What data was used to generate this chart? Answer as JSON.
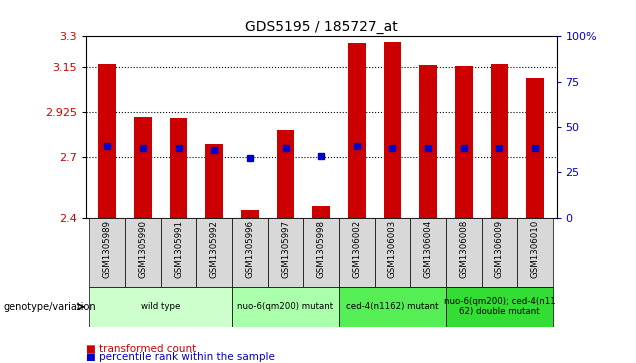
{
  "title": "GDS5195 / 185727_at",
  "samples": [
    "GSM1305989",
    "GSM1305990",
    "GSM1305991",
    "GSM1305992",
    "GSM1305996",
    "GSM1305997",
    "GSM1305998",
    "GSM1306002",
    "GSM1306003",
    "GSM1306004",
    "GSM1306008",
    "GSM1306009",
    "GSM1306010"
  ],
  "bar_heights": [
    3.162,
    2.9,
    2.895,
    2.765,
    2.44,
    2.835,
    2.46,
    3.265,
    3.27,
    3.16,
    3.155,
    3.165,
    3.095
  ],
  "percentile_values": [
    2.755,
    2.745,
    2.745,
    2.735,
    2.695,
    2.745,
    2.705,
    2.755,
    2.745,
    2.745,
    2.745,
    2.745,
    2.745
  ],
  "bar_color": "#cc0000",
  "percentile_color": "#0000cc",
  "ymin": 2.4,
  "ymax": 3.3,
  "yticks": [
    2.4,
    2.7,
    2.925,
    3.15,
    3.3
  ],
  "ytick_labels": [
    "2.4",
    "2.7",
    "2.925",
    "3.15",
    "3.3"
  ],
  "right_yticks": [
    0,
    25,
    50,
    75,
    100
  ],
  "right_ytick_labels": [
    "0",
    "25",
    "50",
    "75",
    "100%"
  ],
  "groups": [
    {
      "label": "wild type",
      "start": 0,
      "end": 3,
      "color": "#ccffcc"
    },
    {
      "label": "nuo-6(qm200) mutant",
      "start": 4,
      "end": 6,
      "color": "#aaffaa"
    },
    {
      "label": "ced-4(n1162) mutant",
      "start": 7,
      "end": 9,
      "color": "#55ee55"
    },
    {
      "label": "nuo-6(qm200); ced-4(n11\n62) double mutant",
      "start": 10,
      "end": 12,
      "color": "#33dd33"
    }
  ],
  "genotype_label": "genotype/variation",
  "legend_items": [
    {
      "label": "transformed count",
      "color": "#cc0000"
    },
    {
      "label": "percentile rank within the sample",
      "color": "#0000cc"
    }
  ],
  "background_color": "#ffffff"
}
